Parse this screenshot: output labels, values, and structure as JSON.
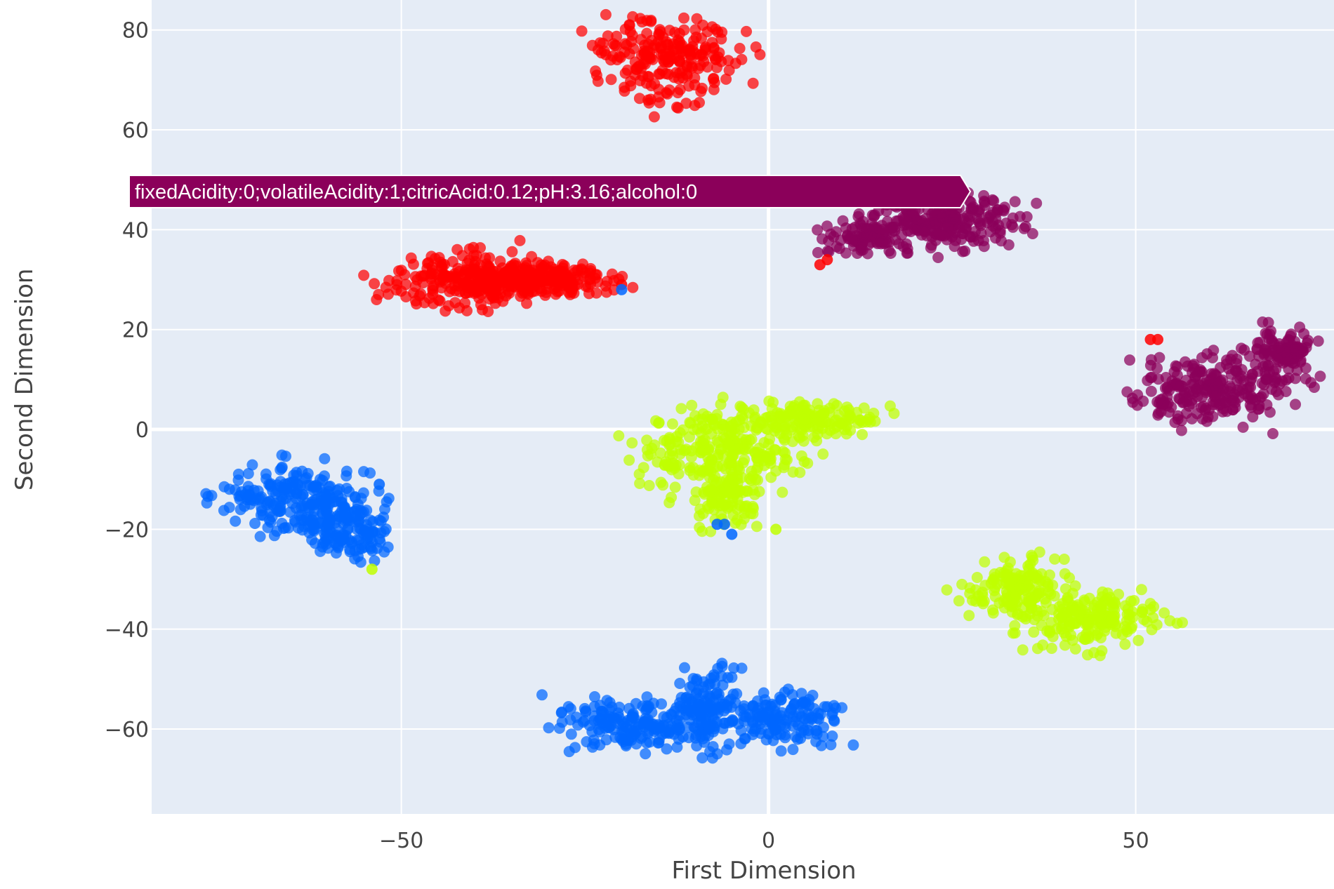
{
  "chart_data": {
    "type": "scatter",
    "xlabel": "First Dimension",
    "ylabel": "Second Dimension",
    "xlim": [
      -84,
      77
    ],
    "ylim": [
      -77,
      86
    ],
    "grid": true,
    "x_ticks": [
      -50,
      0,
      50
    ],
    "x_tick_labels": [
      "−50",
      "0",
      "50"
    ],
    "y_ticks": [
      -60,
      -40,
      -20,
      0,
      20,
      40,
      60,
      80
    ],
    "y_tick_labels": [
      "−60",
      "−40",
      "−20",
      "0",
      "20",
      "40",
      "60",
      "80"
    ],
    "colors": {
      "plot_bg": "#e5ecf6",
      "grid": "#ffffff",
      "red": "#ff0000",
      "purple": "#8b005a",
      "lime": "#bfff00",
      "blue": "#0066ff"
    },
    "clusters": [
      {
        "color": "red",
        "cx": -14,
        "cy": 74,
        "rx": 8,
        "ry": 7,
        "n": 220
      },
      {
        "color": "red",
        "cx": -40,
        "cy": 30,
        "rx": 10,
        "ry": 5,
        "n": 260
      },
      {
        "color": "red",
        "cx": -30,
        "cy": 30,
        "rx": 8,
        "ry": 3,
        "n": 170
      },
      {
        "color": "purple",
        "cx": 24,
        "cy": 42,
        "rx": 10,
        "ry": 5,
        "n": 240
      },
      {
        "color": "purple",
        "cx": 13,
        "cy": 38,
        "rx": 5,
        "ry": 3,
        "n": 90
      },
      {
        "color": "purple",
        "cx": 60,
        "cy": 8,
        "rx": 9,
        "ry": 6,
        "n": 230
      },
      {
        "color": "purple",
        "cx": 70,
        "cy": 15,
        "rx": 4,
        "ry": 5,
        "n": 110
      },
      {
        "color": "lime",
        "cx": -6,
        "cy": -4,
        "rx": 10,
        "ry": 8,
        "n": 260
      },
      {
        "color": "lime",
        "cx": 6,
        "cy": 2,
        "rx": 8,
        "ry": 3,
        "n": 140
      },
      {
        "color": "lime",
        "cx": -6,
        "cy": -14,
        "rx": 4,
        "ry": 5,
        "n": 90
      },
      {
        "color": "lime",
        "cx": 34,
        "cy": -32,
        "rx": 6,
        "ry": 5,
        "n": 140
      },
      {
        "color": "lime",
        "cx": 44,
        "cy": -38,
        "rx": 9,
        "ry": 5,
        "n": 200
      },
      {
        "color": "blue",
        "cx": -64,
        "cy": -14,
        "rx": 9,
        "ry": 6,
        "n": 240
      },
      {
        "color": "blue",
        "cx": -57,
        "cy": -21,
        "rx": 5,
        "ry": 5,
        "n": 110
      },
      {
        "color": "blue",
        "cx": -18,
        "cy": -59,
        "rx": 9,
        "ry": 4,
        "n": 180
      },
      {
        "color": "blue",
        "cx": -8,
        "cy": -56,
        "rx": 4,
        "ry": 8,
        "n": 130
      },
      {
        "color": "blue",
        "cx": 2,
        "cy": -58,
        "rx": 7,
        "ry": 5,
        "n": 150
      }
    ],
    "outliers": [
      {
        "x": -20,
        "y": 29,
        "color": "red"
      },
      {
        "x": -20,
        "y": 28,
        "color": "blue"
      },
      {
        "x": 8,
        "y": 34,
        "color": "red"
      },
      {
        "x": 7,
        "y": 33,
        "color": "red"
      },
      {
        "x": 52,
        "y": 18,
        "color": "red"
      },
      {
        "x": 53,
        "y": 18,
        "color": "red"
      },
      {
        "x": -53,
        "y": -11,
        "color": "blue"
      },
      {
        "x": -54,
        "y": -28,
        "color": "lime"
      },
      {
        "x": -7,
        "y": -19,
        "color": "blue"
      },
      {
        "x": -6,
        "y": -19,
        "color": "blue"
      },
      {
        "x": -5,
        "y": -21,
        "color": "blue"
      },
      {
        "x": 1,
        "y": -20,
        "color": "lime"
      }
    ],
    "hover": {
      "text": "fixedAcidity:0;volatileAcidity:1;citricAcid:0.12;pH:3.16;alcohol:0",
      "color": "#8b005a",
      "x": 27,
      "y": 48
    }
  }
}
